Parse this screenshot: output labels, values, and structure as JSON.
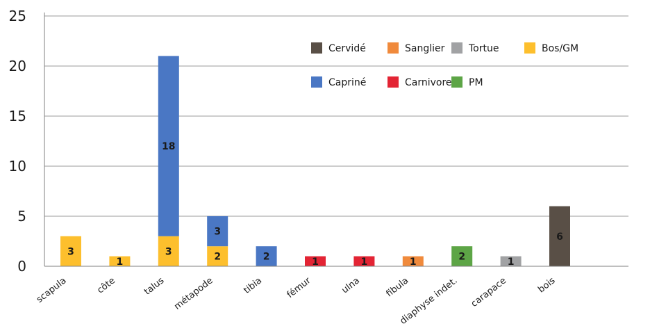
{
  "chart_data": {
    "type": "bar",
    "stacked": true,
    "categories": [
      "scapula",
      "côte",
      "talus",
      "métapode",
      "tibia",
      "fémur",
      "ulna",
      "fibula",
      "diaphyse indet.",
      "carapace",
      "bois"
    ],
    "series": [
      {
        "name": "Bos/GM",
        "color": "#fdbf2d",
        "values": [
          3,
          1,
          3,
          2,
          0,
          0,
          0,
          0,
          0,
          0,
          0
        ],
        "labels": [
          "3",
          "1",
          "3",
          "2",
          "",
          "",
          "",
          "",
          "",
          "",
          ""
        ]
      },
      {
        "name": "Capriné",
        "color": "#4a77c4",
        "values": [
          0,
          0,
          18,
          3,
          2,
          0,
          0,
          0,
          0,
          0,
          0
        ],
        "labels": [
          "",
          "",
          "18",
          "3",
          "2",
          "",
          "",
          "",
          "",
          "",
          ""
        ]
      },
      {
        "name": "Carnivore",
        "color": "#e32434",
        "values": [
          0,
          0,
          0,
          0,
          0,
          1,
          1,
          0,
          0,
          0,
          0
        ],
        "labels": [
          "",
          "",
          "",
          "",
          "",
          "1",
          "1",
          "",
          "",
          "",
          ""
        ]
      },
      {
        "name": "Sanglier",
        "color": "#f08a3c",
        "values": [
          0,
          0,
          0,
          0,
          0,
          0,
          0,
          1,
          0,
          0,
          0
        ],
        "labels": [
          "",
          "",
          "",
          "",
          "",
          "",
          "",
          "1",
          "",
          "",
          ""
        ]
      },
      {
        "name": "PM",
        "color": "#5da546",
        "values": [
          0,
          0,
          0,
          0,
          0,
          0,
          0,
          0,
          2,
          0,
          0
        ],
        "labels": [
          "",
          "",
          "",
          "",
          "",
          "",
          "",
          "",
          "2",
          "",
          ""
        ]
      },
      {
        "name": "Tortue",
        "color": "#a1a2a4",
        "values": [
          0,
          0,
          0,
          0,
          0,
          0,
          0,
          0,
          0,
          1,
          0
        ],
        "labels": [
          "",
          "",
          "",
          "",
          "",
          "",
          "",
          "",
          "",
          "1",
          ""
        ]
      },
      {
        "name": "Cervidé",
        "color": "#594f46",
        "values": [
          0,
          0,
          0,
          0,
          0,
          0,
          0,
          0,
          0,
          0,
          6
        ],
        "labels": [
          "",
          "",
          "",
          "",
          "",
          "",
          "",
          "",
          "",
          "",
          "6"
        ]
      }
    ],
    "legend": {
      "rows": [
        [
          "Cervidé",
          "Sanglier",
          "Tortue",
          "Bos/GM"
        ],
        [
          "Capriné",
          "Carnivore",
          "PM"
        ]
      ],
      "position": "top-right"
    },
    "ylim": [
      0,
      25
    ],
    "yticks": [
      "0",
      "5",
      "10",
      "15",
      "20",
      "25"
    ],
    "grid": true,
    "title": "",
    "xlabel": "",
    "ylabel": ""
  }
}
